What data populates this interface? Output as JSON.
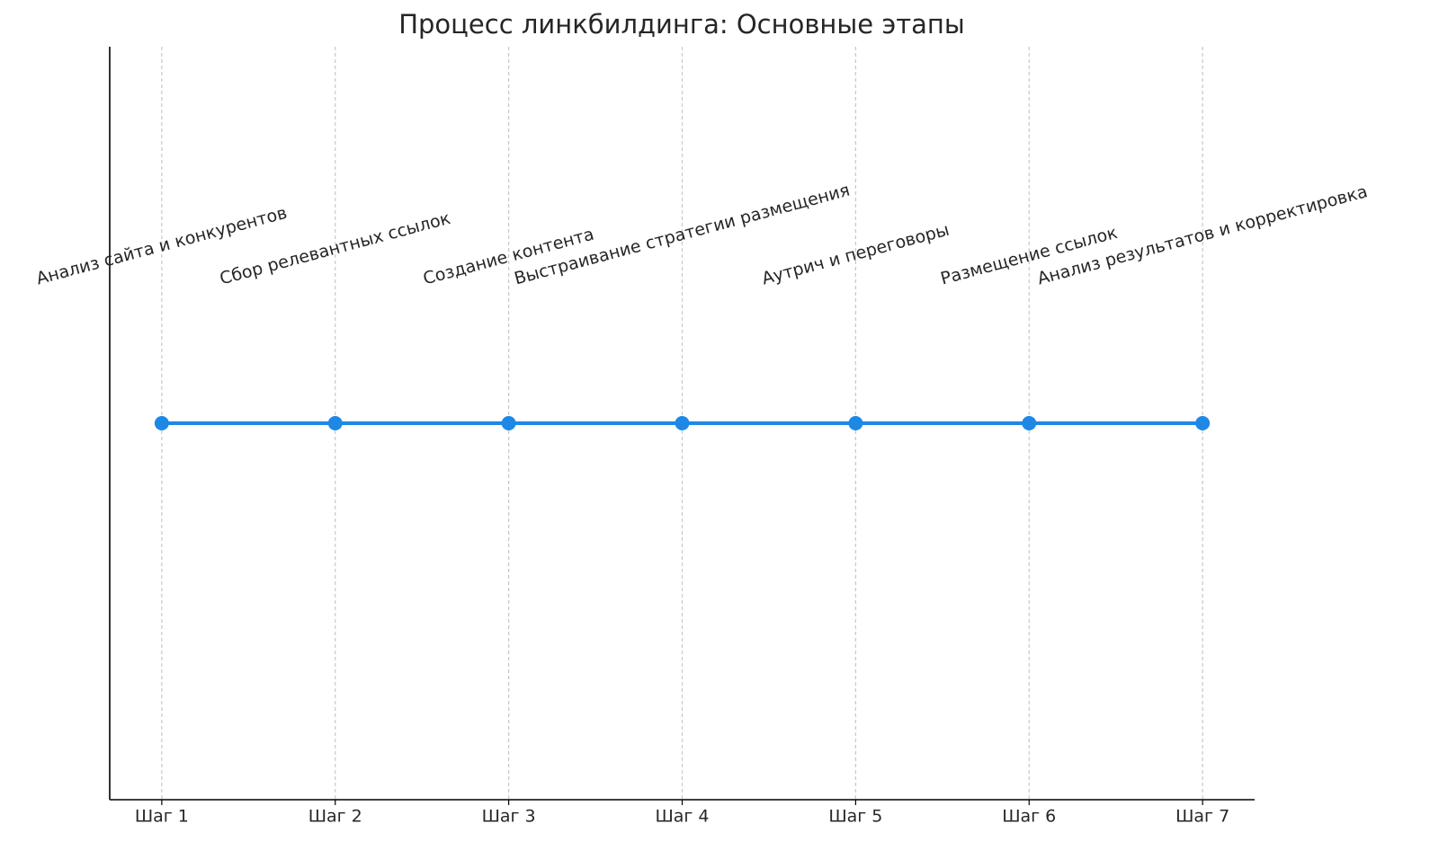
{
  "chart_data": {
    "type": "line",
    "title": "Процесс линкбилдинга: Основные этапы",
    "categories": [
      "Шаг 1",
      "Шаг 2",
      "Шаг 3",
      "Шаг 4",
      "Шаг 5",
      "Шаг 6",
      "Шаг 7"
    ],
    "values": [
      1,
      1,
      1,
      1,
      1,
      1,
      1
    ],
    "annotations": [
      "Анализ сайта и конкурентов",
      "Сбор релевантных ссылок",
      "Создание контента",
      "Выстраивание стратегии размещения",
      "Аутрич и переговоры",
      "Размещение ссылок",
      "Анализ результатов и корректировка"
    ],
    "color": "#1e88e5",
    "ylim": [
      0.94,
      1.06
    ],
    "grid": true
  }
}
